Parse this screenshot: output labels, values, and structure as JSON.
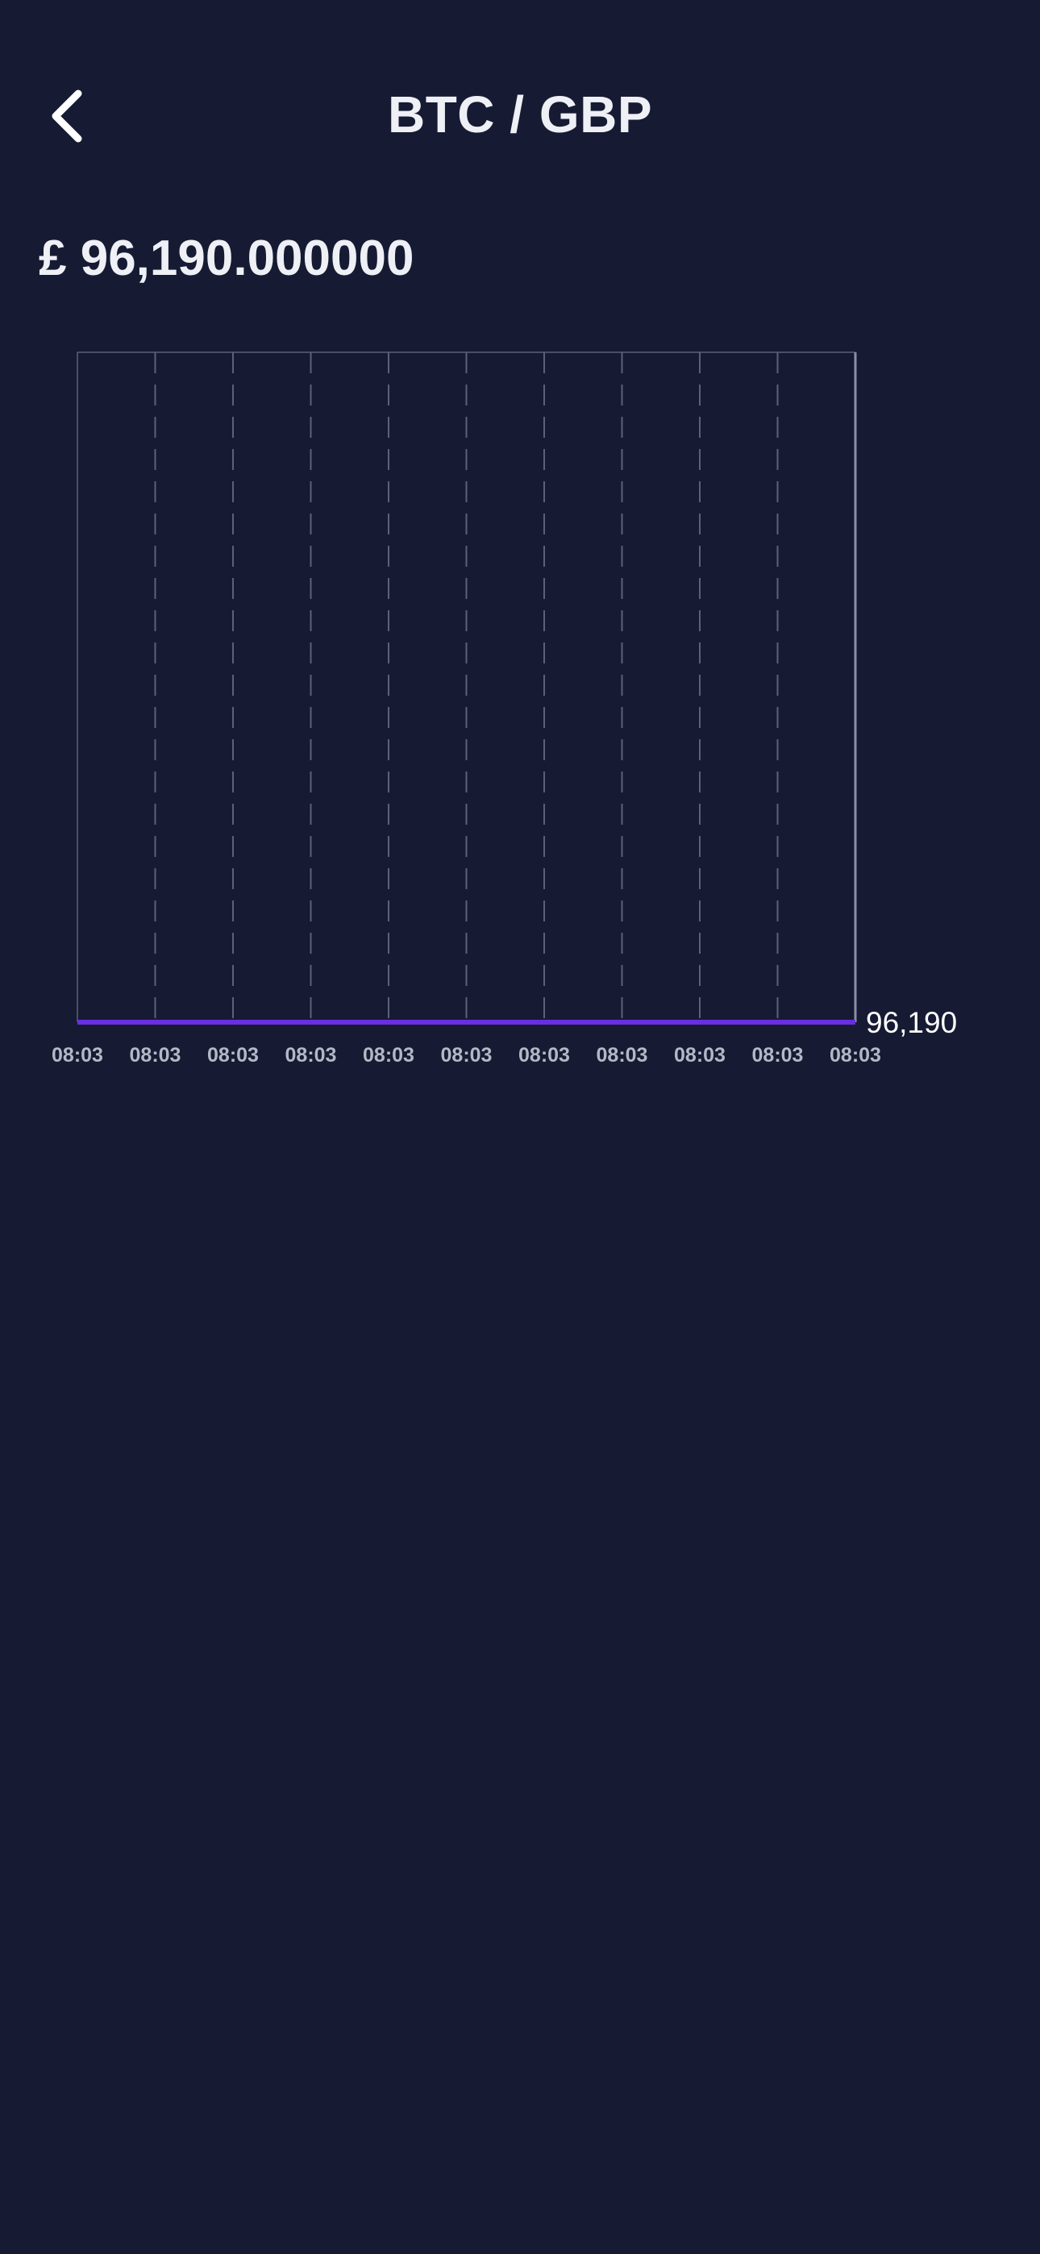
{
  "header": {
    "title": "BTC / GBP",
    "back_icon": "chevron-left-icon"
  },
  "price": {
    "display": "£ 96,190.000000"
  },
  "colors": {
    "background": "#161b33",
    "text": "#eef0f6",
    "line": "#6a2ee0",
    "grid": "#5a6178",
    "axis_label": "#b4b8c6"
  },
  "chart_data": {
    "type": "line",
    "x": [
      "08:03",
      "08:03",
      "08:03",
      "08:03",
      "08:03",
      "08:03",
      "08:03",
      "08:03",
      "08:03",
      "08:03",
      "08:03"
    ],
    "series": [
      {
        "values": [
          96190,
          96190,
          96190,
          96190,
          96190,
          96190,
          96190,
          96190,
          96190,
          96190,
          96190
        ]
      }
    ],
    "y_tick_labels": [
      "96,190"
    ],
    "y_axis_side": "right",
    "grid": "vertical-dashed",
    "legend": "none"
  }
}
